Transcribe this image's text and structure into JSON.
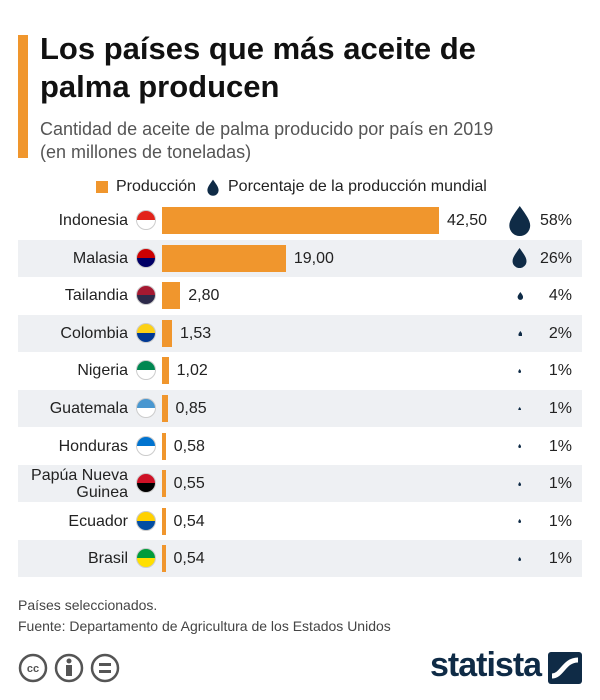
{
  "chart_data": {
    "type": "bar",
    "title": "Los países que más aceite de palma producen",
    "subtitle": "Cantidad de aceite de palma producido por país en 2019 (en millones de toneladas)",
    "categories": [
      "Indonesia",
      "Malasia",
      "Tailandia",
      "Colombia",
      "Nigeria",
      "Guatemala",
      "Honduras",
      "Papúa Nueva Guinea",
      "Ecuador",
      "Brasil"
    ],
    "series": [
      {
        "name": "Producción",
        "color": "#f0962d",
        "values": [
          42.5,
          19.0,
          2.8,
          1.53,
          1.02,
          0.85,
          0.58,
          0.55,
          0.54,
          0.54
        ],
        "value_labels": [
          "42,50",
          "19,00",
          "2,80",
          "1,53",
          "1,02",
          "0,85",
          "0,58",
          "0,55",
          "0,54",
          "0,54"
        ]
      },
      {
        "name": "Porcentaje de la producción mundial",
        "color": "#0f2b46",
        "marker": "drop",
        "values": [
          58,
          26,
          4,
          2,
          1,
          1,
          1,
          1,
          1,
          1
        ],
        "value_labels": [
          "58%",
          "26%",
          "4%",
          "2%",
          "1%",
          "1%",
          "1%",
          "1%",
          "1%",
          "1%"
        ]
      }
    ],
    "notes": [
      "Países seleccionados.",
      "Fuente: Departamento de Agricultura de los Estados Unidos"
    ],
    "brand": "statista"
  }
}
